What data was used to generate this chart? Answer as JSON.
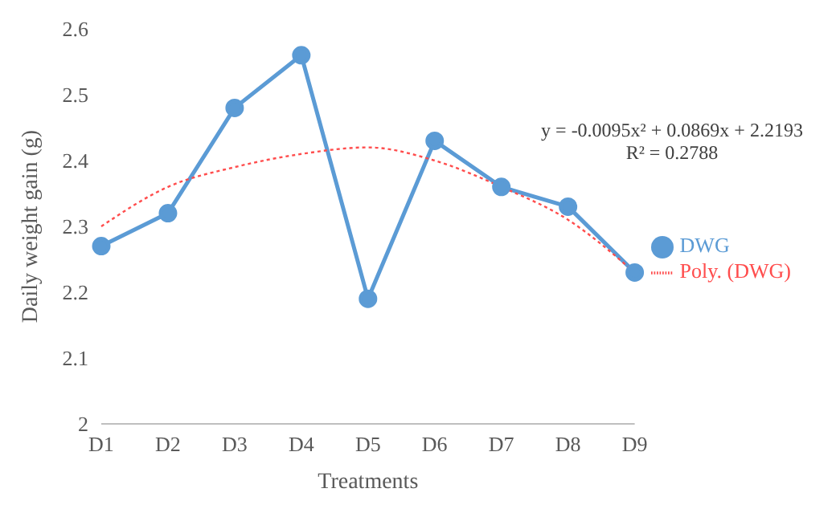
{
  "chart_data": {
    "type": "line",
    "xlabel": "Treatments",
    "ylabel": "Daily  weight  gain  (g)",
    "categories": [
      "D1",
      "D2",
      "D3",
      "D4",
      "D5",
      "D6",
      "D7",
      "D8",
      "D9"
    ],
    "series": [
      {
        "name": "DWG",
        "color": "#5b9bd5",
        "values": [
          2.27,
          2.32,
          2.48,
          2.56,
          2.19,
          2.43,
          2.36,
          2.33,
          2.23
        ],
        "marker": "circle",
        "line_style": "solid"
      },
      {
        "name": "Poly. (DWG)",
        "color": "#ff4d4d",
        "values": [
          2.3,
          2.36,
          2.39,
          2.41,
          2.42,
          2.4,
          2.36,
          2.31,
          2.23
        ],
        "marker": "none",
        "line_style": "dotted"
      }
    ],
    "ylim": [
      2,
      2.6
    ],
    "yticks": [
      2,
      2.1,
      2.2,
      2.3,
      2.4,
      2.5,
      2.6
    ],
    "grid": false,
    "legend": "right",
    "annotations": [
      "y = -0.0095x² + 0.0869x + 2.2193",
      "R² = 0.2788"
    ]
  }
}
